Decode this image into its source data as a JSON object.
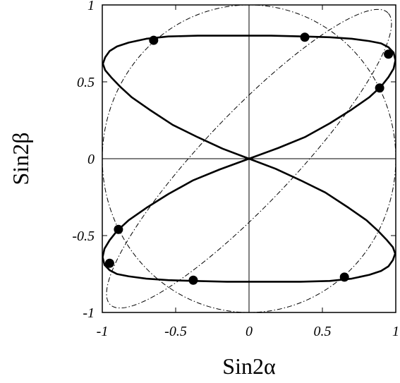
{
  "chart_data": {
    "type": "line",
    "title": "",
    "xlabel": "Sin2α",
    "ylabel": "Sin2β",
    "xlim": [
      -1,
      1
    ],
    "ylim": [
      -1,
      1
    ],
    "xticks": [
      "-1",
      "-0.5",
      "0",
      "0.5",
      "1"
    ],
    "yticks": [
      "-1",
      "-0.5",
      "0",
      "0.5",
      "1"
    ],
    "zero_lines": true,
    "grid": false,
    "legend": "none",
    "colors": {
      "ink": "#000000",
      "background": "#ffffff"
    },
    "series": [
      {
        "style": "solid-thick",
        "curve": "lissajous",
        "points": [
          [
            -0.996,
            0.617
          ],
          [
            -0.98,
            0.66
          ],
          [
            -0.95,
            0.7
          ],
          [
            -0.9,
            0.73
          ],
          [
            -0.82,
            0.755
          ],
          [
            -0.7,
            0.78
          ],
          [
            -0.55,
            0.795
          ],
          [
            -0.35,
            0.8
          ],
          [
            -0.1,
            0.8
          ],
          [
            0.15,
            0.8
          ],
          [
            0.37,
            0.795
          ],
          [
            0.55,
            0.79
          ],
          [
            0.7,
            0.78
          ],
          [
            0.82,
            0.765
          ],
          [
            0.9,
            0.75
          ],
          [
            0.95,
            0.725
          ],
          [
            0.985,
            0.69
          ],
          [
            0.998,
            0.64
          ],
          [
            0.985,
            0.585
          ],
          [
            0.95,
            0.53
          ],
          [
            0.9,
            0.47
          ],
          [
            0.82,
            0.4
          ],
          [
            0.7,
            0.32
          ],
          [
            0.55,
            0.23
          ],
          [
            0.38,
            0.14
          ],
          [
            0.2,
            0.07
          ],
          [
            0.0,
            0.0
          ],
          [
            -0.2,
            -0.07
          ],
          [
            -0.38,
            -0.14
          ],
          [
            -0.55,
            -0.23
          ],
          [
            -0.7,
            -0.32
          ],
          [
            -0.82,
            -0.4
          ],
          [
            -0.9,
            -0.47
          ],
          [
            -0.95,
            -0.53
          ],
          [
            -0.985,
            -0.585
          ],
          [
            -0.998,
            -0.64
          ],
          [
            -0.985,
            -0.69
          ],
          [
            -0.95,
            -0.725
          ],
          [
            -0.9,
            -0.75
          ],
          [
            -0.82,
            -0.765
          ],
          [
            -0.7,
            -0.78
          ],
          [
            -0.55,
            -0.79
          ],
          [
            -0.37,
            -0.795
          ],
          [
            -0.15,
            -0.8
          ],
          [
            0.1,
            -0.8
          ],
          [
            0.35,
            -0.8
          ],
          [
            0.55,
            -0.795
          ],
          [
            0.7,
            -0.78
          ],
          [
            0.82,
            -0.755
          ],
          [
            0.9,
            -0.73
          ],
          [
            0.95,
            -0.7
          ],
          [
            0.98,
            -0.66
          ],
          [
            0.996,
            -0.617
          ],
          [
            0.98,
            -0.575
          ],
          [
            0.94,
            -0.53
          ],
          [
            0.88,
            -0.47
          ],
          [
            0.8,
            -0.4
          ],
          [
            0.68,
            -0.32
          ],
          [
            0.52,
            -0.22
          ],
          [
            0.35,
            -0.14
          ],
          [
            0.18,
            -0.065
          ],
          [
            0.0,
            0.0
          ],
          [
            -0.18,
            0.065
          ],
          [
            -0.35,
            0.14
          ],
          [
            -0.52,
            0.22
          ],
          [
            -0.68,
            0.32
          ],
          [
            -0.8,
            0.4
          ],
          [
            -0.88,
            0.47
          ],
          [
            -0.94,
            0.53
          ],
          [
            -0.98,
            0.575
          ],
          [
            -0.996,
            0.617
          ]
        ]
      },
      {
        "style": "dash-dot-thin",
        "curve": "circle",
        "center": [
          0,
          0
        ],
        "radius": 1
      },
      {
        "style": "dash-dot-thin",
        "curve": "tilted-ellipse",
        "angle_deg": 45,
        "semi_major": 1.34,
        "semi_minor": 0.3
      }
    ],
    "markers": [
      [
        -0.65,
        0.77
      ],
      [
        0.38,
        0.79
      ],
      [
        0.95,
        0.68
      ],
      [
        0.89,
        0.46
      ],
      [
        -0.89,
        -0.46
      ],
      [
        -0.95,
        -0.68
      ],
      [
        -0.38,
        -0.79
      ],
      [
        0.65,
        -0.77
      ]
    ]
  }
}
